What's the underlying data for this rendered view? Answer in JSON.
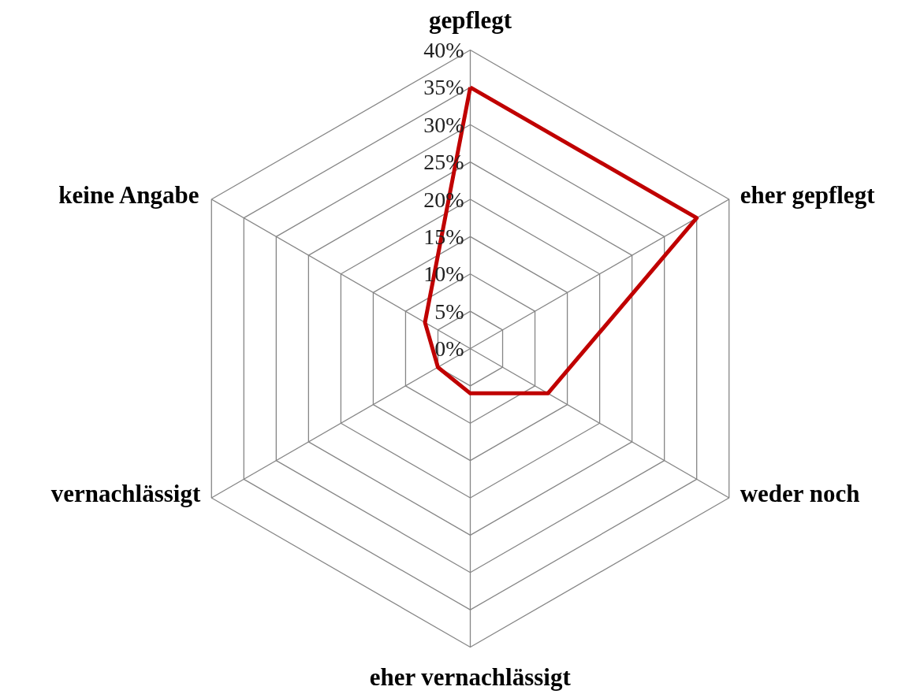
{
  "chart_data": {
    "type": "radar",
    "categories": [
      "gepflegt",
      "eher gepflegt",
      "weder noch",
      "eher vernachlässigt",
      "vernachlässigt",
      "keine Angabe"
    ],
    "series": [
      {
        "color": "#c00000",
        "values": [
          35,
          35,
          12,
          6,
          5,
          7
        ]
      }
    ],
    "ylim": [
      0,
      40
    ],
    "yticks": [
      {
        "value": 0,
        "label": "0%"
      },
      {
        "value": 5,
        "label": "5%"
      },
      {
        "value": 10,
        "label": "10%"
      },
      {
        "value": 15,
        "label": "15%"
      },
      {
        "value": 20,
        "label": "20%"
      },
      {
        "value": 25,
        "label": "25%"
      },
      {
        "value": 30,
        "label": "30%"
      },
      {
        "value": 35,
        "label": "35%"
      },
      {
        "value": 40,
        "label": "40%"
      }
    ],
    "grid": true
  }
}
